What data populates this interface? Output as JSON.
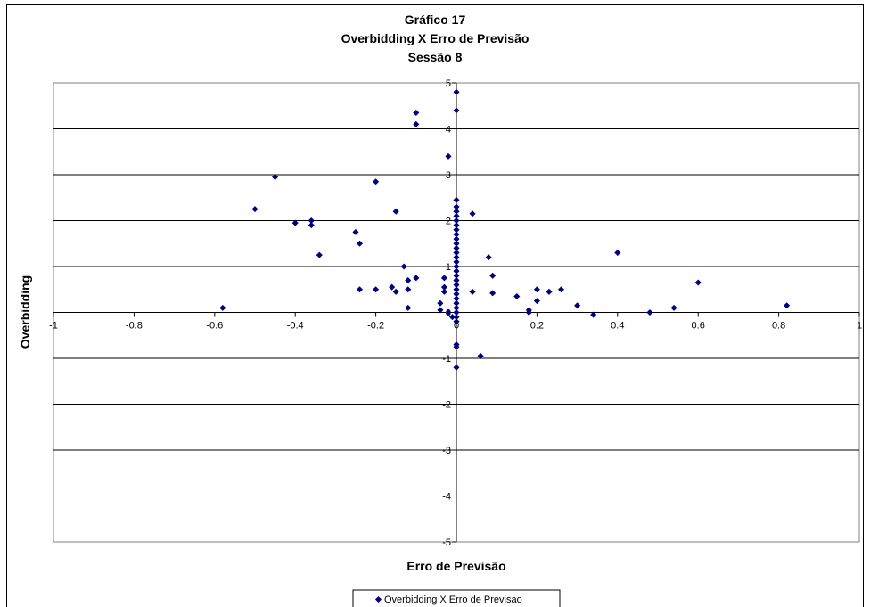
{
  "chart_data": {
    "type": "scatter",
    "title_lines": [
      "Gráfico 17",
      "Overbidding X Erro de Previsão",
      "Sessão 8"
    ],
    "xlabel": "Erro de Previsão",
    "ylabel": "Overbidding",
    "xlim": [
      -1,
      1
    ],
    "ylim": [
      -5,
      5
    ],
    "x_ticks": [
      -1,
      -0.8,
      -0.6,
      -0.4,
      -0.2,
      0,
      0.2,
      0.4,
      0.6,
      0.8,
      1
    ],
    "x_tick_labels": [
      "-1",
      "-0.8",
      "-0.6",
      "-0.4",
      "-0.2",
      "0",
      "0.2",
      "0.4",
      "0.6",
      "0.8",
      "1"
    ],
    "y_ticks": [
      -5,
      -4,
      -3,
      -2,
      -1,
      0,
      1,
      2,
      3,
      4,
      5
    ],
    "y_tick_labels": [
      "-5",
      "-4",
      "-3",
      "-2",
      "-1",
      "0",
      "1",
      "2",
      "3",
      "4",
      "5"
    ],
    "grid": "horizontal",
    "legend_position": "bottom",
    "marker_color": "#000080",
    "series": [
      {
        "name": "Overbidding X Erro de Previsao",
        "points": [
          [
            0,
            4.8
          ],
          [
            0,
            4.4
          ],
          [
            -0.1,
            4.35
          ],
          [
            -0.1,
            4.1
          ],
          [
            -0.02,
            3.4
          ],
          [
            -0.45,
            2.95
          ],
          [
            -0.2,
            2.85
          ],
          [
            -0.5,
            2.25
          ],
          [
            -0.15,
            2.2
          ],
          [
            0.04,
            2.15
          ],
          [
            -0.36,
            2.0
          ],
          [
            -0.4,
            1.95
          ],
          [
            -0.36,
            1.9
          ],
          [
            -0.25,
            1.75
          ],
          [
            -0.24,
            1.5
          ],
          [
            -0.34,
            1.25
          ],
          [
            0.4,
            1.3
          ],
          [
            0.08,
            1.2
          ],
          [
            -0.13,
            1.0
          ],
          [
            0.09,
            0.8
          ],
          [
            -0.1,
            0.75
          ],
          [
            -0.12,
            0.7
          ],
          [
            0.6,
            0.65
          ],
          [
            -0.03,
            0.75
          ],
          [
            -0.16,
            0.55
          ],
          [
            -0.03,
            0.55
          ],
          [
            -0.24,
            0.5
          ],
          [
            -0.2,
            0.5
          ],
          [
            -0.12,
            0.5
          ],
          [
            0.2,
            0.5
          ],
          [
            0.26,
            0.5
          ],
          [
            0.23,
            0.45
          ],
          [
            -0.15,
            0.45
          ],
          [
            -0.03,
            0.45
          ],
          [
            0.04,
            0.45
          ],
          [
            0.09,
            0.42
          ],
          [
            0.15,
            0.35
          ],
          [
            -0.04,
            0.2
          ],
          [
            0.2,
            0.25
          ],
          [
            0.3,
            0.15
          ],
          [
            0.82,
            0.15
          ],
          [
            -0.58,
            0.1
          ],
          [
            -0.12,
            0.1
          ],
          [
            0.54,
            0.1
          ],
          [
            -0.04,
            0.05
          ],
          [
            0.18,
            0.05
          ],
          [
            -0.02,
            0.0
          ],
          [
            0.18,
            0.0
          ],
          [
            0.48,
            0.0
          ],
          [
            0.34,
            -0.05
          ],
          [
            -0.01,
            -0.1
          ],
          [
            0.06,
            -0.95
          ],
          [
            0,
            -0.7
          ],
          [
            0,
            -0.75
          ],
          [
            0,
            -1.2
          ],
          [
            0,
            2.45
          ],
          [
            0,
            2.3
          ],
          [
            0,
            2.2
          ],
          [
            0,
            2.1
          ],
          [
            0,
            2.0
          ],
          [
            0,
            1.9
          ],
          [
            0,
            1.8
          ],
          [
            0,
            1.7
          ],
          [
            0,
            1.6
          ],
          [
            0,
            1.5
          ],
          [
            0,
            1.4
          ],
          [
            0,
            1.3
          ],
          [
            0,
            1.2
          ],
          [
            0,
            1.1
          ],
          [
            0,
            1.0
          ],
          [
            0,
            0.9
          ],
          [
            0,
            0.8
          ],
          [
            0,
            0.7
          ],
          [
            0,
            0.6
          ],
          [
            0,
            0.5
          ],
          [
            0,
            0.4
          ],
          [
            0,
            0.3
          ],
          [
            0,
            0.2
          ],
          [
            0,
            0.1
          ],
          [
            0,
            0.0
          ],
          [
            0,
            -0.1
          ],
          [
            0,
            -0.2
          ]
        ]
      }
    ]
  }
}
